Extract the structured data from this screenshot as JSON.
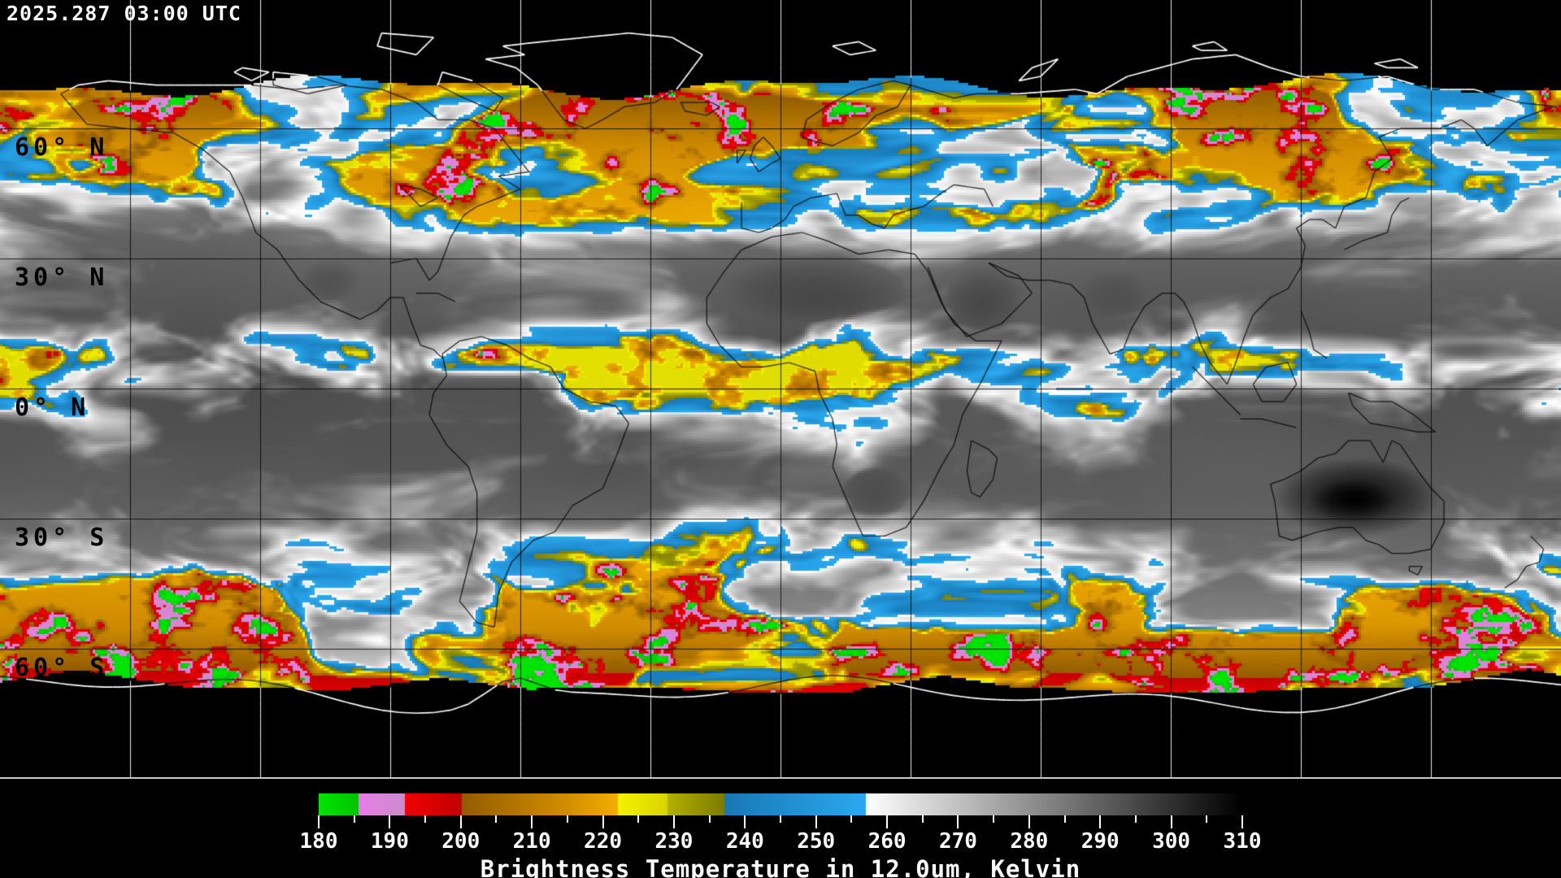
{
  "page": {
    "background": "#000000"
  },
  "header": {
    "timestamp": "2025.287 03:00 UTC"
  },
  "map": {
    "latitude_labels": [
      {
        "text": "60° N",
        "lat": 60
      },
      {
        "text": "30° N",
        "lat": 30
      },
      {
        "text": "0° N",
        "lat": 0
      },
      {
        "text": "30° S",
        "lat": -30
      },
      {
        "text": "60° S",
        "lat": -60
      }
    ],
    "grid": {
      "lon_step_deg": 30,
      "lat_step_deg": 30
    },
    "colors": {
      "gridline_on_data": "#000000",
      "gridline_on_void": "#f0f0f0",
      "coastline_on_data": "#000000",
      "coastline_on_void": "#ffffff",
      "no_data": "#000000",
      "frame": "#c9c9c9",
      "cold_cloud_blue": "#2aa0e4",
      "very_cold_yellow": "#e8e400",
      "deep_convection_red": "#e01010"
    }
  },
  "colorbar": {
    "caption": "Brightness Temperature in 12.0um, Kelvin",
    "unit": "Kelvin",
    "range_min": 180,
    "range_max": 310,
    "tick_labels": [
      "180",
      "190",
      "200",
      "210",
      "220",
      "230",
      "240",
      "250",
      "260",
      "270",
      "280",
      "290",
      "300",
      "310"
    ],
    "minor_tick_step_k": 5,
    "stops": [
      {
        "t": 180.0,
        "color": "#00e400"
      },
      {
        "t": 185.5,
        "color": "#00c400"
      },
      {
        "t": 185.6,
        "color": "#e87de8"
      },
      {
        "t": 192.0,
        "color": "#cc8ccc"
      },
      {
        "t": 192.1,
        "color": "#f00000"
      },
      {
        "t": 200.0,
        "color": "#c20000"
      },
      {
        "t": 200.1,
        "color": "#935c00"
      },
      {
        "t": 215.0,
        "color": "#d28e00"
      },
      {
        "t": 222.0,
        "color": "#f2ae00"
      },
      {
        "t": 222.1,
        "color": "#f5f200"
      },
      {
        "t": 229.0,
        "color": "#d8d400"
      },
      {
        "t": 229.1,
        "color": "#b4b000"
      },
      {
        "t": 237.0,
        "color": "#7e7c00"
      },
      {
        "t": 237.1,
        "color": "#1878b4"
      },
      {
        "t": 257.0,
        "color": "#2bа8f0"
      },
      {
        "t": 257.1,
        "color": "#ffffff"
      },
      {
        "t": 310.0,
        "color": "#000000"
      }
    ]
  }
}
